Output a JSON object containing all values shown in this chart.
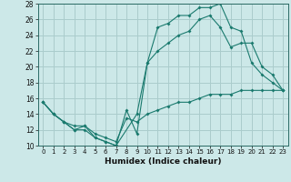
{
  "xlabel": "Humidex (Indice chaleur)",
  "bg_color": "#cce8e8",
  "grid_color": "#aacccc",
  "line_color": "#1a7a6e",
  "xlim": [
    -0.5,
    23.5
  ],
  "ylim": [
    10,
    28
  ],
  "xticks": [
    0,
    1,
    2,
    3,
    4,
    5,
    6,
    7,
    8,
    9,
    10,
    11,
    12,
    13,
    14,
    15,
    16,
    17,
    18,
    19,
    20,
    21,
    22,
    23
  ],
  "yticks": [
    10,
    12,
    14,
    16,
    18,
    20,
    22,
    24,
    26,
    28
  ],
  "line1_x": [
    0,
    1,
    2,
    3,
    4,
    5,
    6,
    7,
    8,
    9,
    10,
    11,
    12,
    13,
    14,
    15,
    16,
    17,
    18,
    19,
    20,
    21,
    22,
    23
  ],
  "line1_y": [
    15.5,
    14,
    13,
    12,
    12.5,
    11,
    10.5,
    10,
    14.5,
    11.5,
    20.5,
    25,
    25.5,
    26.5,
    26.5,
    27.5,
    27.5,
    28,
    25,
    24.5,
    20.5,
    19,
    18,
    17
  ],
  "line2_x": [
    0,
    1,
    2,
    3,
    4,
    5,
    6,
    7,
    9,
    10,
    11,
    12,
    13,
    14,
    15,
    16,
    17,
    18,
    19,
    20,
    21,
    22,
    23
  ],
  "line2_y": [
    15.5,
    14,
    13,
    12,
    12,
    11,
    10.5,
    10,
    14,
    20.5,
    22,
    23,
    24,
    24.5,
    26,
    26.5,
    25,
    22.5,
    23,
    23,
    20,
    19,
    17
  ],
  "line3_x": [
    0,
    1,
    2,
    3,
    4,
    5,
    6,
    7,
    8,
    9,
    10,
    11,
    12,
    13,
    14,
    15,
    16,
    17,
    18,
    19,
    20,
    21,
    22,
    23
  ],
  "line3_y": [
    15.5,
    14,
    13,
    12.5,
    12.5,
    11.5,
    11,
    10.5,
    13.5,
    13,
    14,
    14.5,
    15,
    15.5,
    15.5,
    16,
    16.5,
    16.5,
    16.5,
    17,
    17,
    17,
    17,
    17
  ]
}
